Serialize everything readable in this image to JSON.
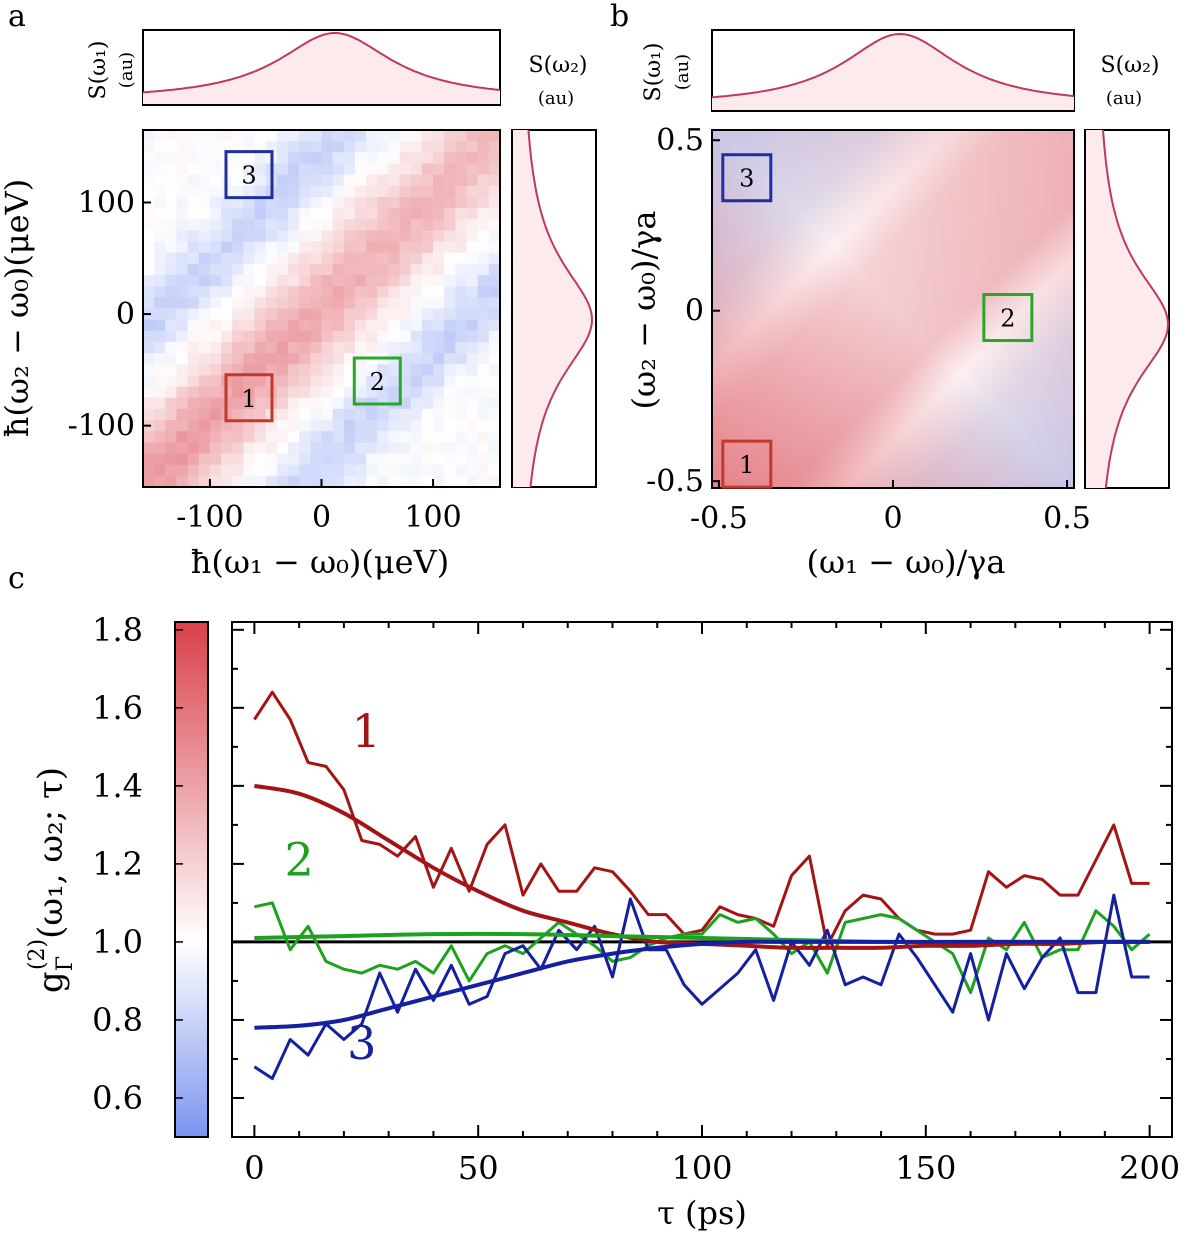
{
  "chart_data": [
    {
      "panel": "a",
      "type": "heatmap",
      "title": "",
      "xlabel": "ħ(ω₁ − ω₀)(μeV)",
      "ylabel": "ħ(ω₂ − ω₀)(μeV)",
      "xlim": [
        -160,
        160
      ],
      "ylim": [
        -155,
        165
      ],
      "xticks": [
        -100,
        0,
        100
      ],
      "yticks": [
        -100,
        0,
        100
      ],
      "xticklabels": [
        "-100",
        "0",
        "100"
      ],
      "yticklabels": [
        "-100",
        "0",
        "100"
      ],
      "spectrum_top_label": "S(ω₁)",
      "spectrum_side_label": "S(ω₂)",
      "spectrum_unit": "(au)",
      "regions": [
        {
          "label": "1",
          "x": -65,
          "y": -75,
          "color": "#c0392b"
        },
        {
          "label": "2",
          "x": 50,
          "y": -60,
          "color": "#27a827"
        },
        {
          "label": "3",
          "x": -65,
          "y": 125,
          "color": "#1f2f9f"
        }
      ]
    },
    {
      "panel": "b",
      "type": "heatmap",
      "title": "",
      "xlabel": "(ω₁ − ω₀)/γa",
      "ylabel": "(ω₂ − ω₀)/γa",
      "xlim": [
        -0.52,
        0.52
      ],
      "ylim": [
        -0.52,
        0.53
      ],
      "xticks": [
        -0.5,
        0,
        0.5
      ],
      "yticks": [
        -0.5,
        0,
        0.5
      ],
      "xticklabels": [
        "-0.5",
        "0",
        "0.5"
      ],
      "yticklabels": [
        "-0.5",
        "0",
        "0.5"
      ],
      "spectrum_top_label": "S(ω₁)",
      "spectrum_side_label": "S(ω₂)",
      "spectrum_unit": "(au)",
      "regions": [
        {
          "label": "1",
          "x": -0.42,
          "y": -0.45,
          "color": "#c0392b"
        },
        {
          "label": "2",
          "x": 0.33,
          "y": -0.02,
          "color": "#27a827"
        },
        {
          "label": "3",
          "x": -0.42,
          "y": 0.39,
          "color": "#1f2f9f"
        }
      ]
    },
    {
      "panel": "c",
      "type": "line",
      "title": "",
      "xlabel": "τ (ps)",
      "ylabel": "g(2)Γ(ω₁, ω₂; τ)",
      "xlim": [
        -5,
        205
      ],
      "ylim": [
        0.5,
        1.82
      ],
      "xticks": [
        0,
        50,
        100,
        150,
        200
      ],
      "xticklabels": [
        "0",
        "50",
        "100",
        "150",
        "200"
      ],
      "colorbar": {
        "min": 0.5,
        "max": 1.82,
        "ticks": [
          0.6,
          0.8,
          1.0,
          1.2,
          1.4,
          1.6,
          1.8
        ],
        "ticklabels": [
          "0.6",
          "0.8",
          "1.0",
          "1.2",
          "1.4",
          "1.6",
          "1.8"
        ],
        "low_color": "#7b94f0",
        "mid_color": "#ffffff",
        "high_color": "#d9404a"
      },
      "reference_line": 1.0,
      "series": [
        {
          "name": "1",
          "color": "#a31515",
          "x": [
            0,
            4,
            8,
            12,
            16,
            20,
            24,
            28,
            32,
            36,
            40,
            44,
            48,
            52,
            56,
            60,
            64,
            68,
            72,
            76,
            80,
            84,
            88,
            92,
            96,
            100,
            104,
            108,
            112,
            116,
            120,
            124,
            128,
            132,
            136,
            140,
            144,
            148,
            152,
            156,
            160,
            164,
            168,
            172,
            176,
            180,
            184,
            188,
            192,
            196,
            200
          ],
          "y": [
            1.57,
            1.64,
            1.57,
            1.46,
            1.45,
            1.39,
            1.26,
            1.25,
            1.22,
            1.27,
            1.14,
            1.24,
            1.13,
            1.25,
            1.3,
            1.12,
            1.2,
            1.13,
            1.13,
            1.19,
            1.18,
            1.13,
            1.07,
            1.07,
            1.02,
            1.03,
            1.09,
            1.07,
            1.06,
            1.04,
            1.17,
            1.22,
            0.99,
            1.08,
            1.12,
            1.11,
            1.06,
            1.03,
            1.02,
            1.02,
            1.03,
            1.18,
            1.14,
            1.17,
            1.16,
            1.12,
            1.12,
            1.21,
            1.3,
            1.15,
            1.15
          ],
          "fit_x": [
            0,
            10,
            20,
            30,
            40,
            50,
            60,
            70,
            80,
            90,
            100,
            110,
            120,
            130,
            140,
            150,
            160,
            170,
            180,
            190,
            200
          ],
          "fit_y": [
            1.4,
            1.38,
            1.33,
            1.26,
            1.19,
            1.13,
            1.08,
            1.05,
            1.02,
            1.0,
            0.995,
            0.99,
            0.985,
            0.985,
            0.985,
            0.99,
            0.99,
            0.995,
            0.995,
            1.0,
            1.0
          ]
        },
        {
          "name": "2",
          "color": "#1ea11e",
          "x": [
            0,
            4,
            8,
            12,
            16,
            20,
            24,
            28,
            32,
            36,
            40,
            44,
            48,
            52,
            56,
            60,
            64,
            68,
            72,
            76,
            80,
            84,
            88,
            92,
            96,
            100,
            104,
            108,
            112,
            116,
            120,
            124,
            128,
            132,
            136,
            140,
            144,
            148,
            152,
            156,
            160,
            164,
            168,
            172,
            176,
            180,
            184,
            188,
            192,
            196,
            200
          ],
          "y": [
            1.09,
            1.1,
            0.98,
            1.04,
            0.95,
            0.93,
            0.92,
            0.94,
            0.93,
            0.95,
            0.92,
            0.99,
            0.9,
            0.97,
            0.99,
            0.97,
            1.01,
            1.05,
            1.02,
            0.99,
            0.95,
            0.96,
            0.99,
            1.01,
            1.02,
            1.02,
            1.07,
            1.05,
            1.06,
            1.02,
            0.97,
            1.0,
            0.92,
            1.05,
            1.06,
            1.07,
            1.06,
            1.03,
            1.0,
            0.97,
            0.87,
            1.01,
            0.98,
            1.05,
            0.96,
            0.98,
            0.98,
            1.08,
            1.04,
            0.98,
            1.02
          ],
          "fit_x": [
            0,
            20,
            40,
            60,
            80,
            100,
            120,
            140,
            160,
            180,
            200
          ],
          "fit_y": [
            1.01,
            1.015,
            1.02,
            1.02,
            1.015,
            1.01,
            1.005,
            1.0,
            1.0,
            1.0,
            1.0
          ]
        },
        {
          "name": "3",
          "color": "#1420a0",
          "x": [
            0,
            4,
            8,
            12,
            16,
            20,
            24,
            28,
            32,
            36,
            40,
            44,
            48,
            52,
            56,
            60,
            64,
            68,
            72,
            76,
            80,
            84,
            88,
            92,
            96,
            100,
            104,
            108,
            112,
            116,
            120,
            124,
            128,
            132,
            136,
            140,
            144,
            148,
            152,
            156,
            160,
            164,
            168,
            172,
            176,
            180,
            184,
            188,
            192,
            196,
            200
          ],
          "y": [
            0.68,
            0.65,
            0.75,
            0.71,
            0.79,
            0.75,
            0.79,
            0.92,
            0.82,
            0.93,
            0.85,
            0.94,
            0.84,
            0.86,
            0.97,
            0.99,
            0.93,
            1.03,
            0.98,
            1.04,
            0.91,
            1.11,
            0.98,
            0.98,
            0.89,
            0.84,
            0.88,
            0.92,
            0.98,
            0.85,
            1.0,
            0.94,
            1.03,
            0.89,
            0.91,
            0.89,
            1.02,
            0.96,
            0.89,
            0.82,
            0.97,
            0.8,
            0.97,
            0.88,
            0.96,
            1.01,
            0.87,
            0.87,
            1.12,
            0.91,
            0.91
          ],
          "fit_x": [
            0,
            10,
            20,
            30,
            40,
            50,
            60,
            70,
            80,
            90,
            100,
            110,
            120,
            140,
            160,
            180,
            200
          ],
          "fit_y": [
            0.78,
            0.785,
            0.8,
            0.83,
            0.86,
            0.89,
            0.92,
            0.95,
            0.97,
            0.985,
            0.995,
            1.0,
            1.0,
            1.0,
            1.0,
            1.0,
            1.0
          ]
        }
      ],
      "annotations": [
        {
          "text": "1",
          "x": 25,
          "y": 1.5,
          "color": "#a31515"
        },
        {
          "text": "2",
          "x": 10,
          "y": 1.17,
          "color": "#1ea11e"
        },
        {
          "text": "3",
          "x": 24,
          "y": 0.7,
          "color": "#1420a0"
        }
      ]
    }
  ],
  "panel_labels": [
    "a",
    "b",
    "c"
  ]
}
